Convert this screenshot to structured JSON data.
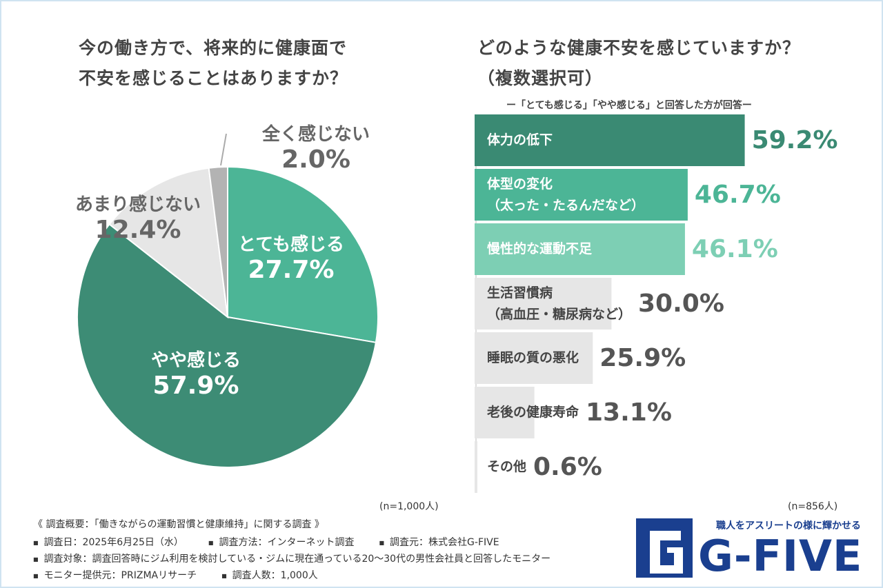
{
  "chart_data": [
    {
      "type": "pie",
      "title": "今の働き方で、将来的に健康面で\n不安を感じることはありますか？",
      "categories": [
        "とても感じる",
        "やや感じる",
        "あまり感じない",
        "全く感じない"
      ],
      "values": [
        27.7,
        57.9,
        12.4,
        2.0
      ],
      "value_labels": [
        "27.7%",
        "57.9%",
        "12.4%",
        "2.0%"
      ],
      "colors": [
        "#4cb596",
        "#3d8c75",
        "#e6e6e6",
        "#b3b3b3"
      ],
      "note": "(n=1,000人)"
    },
    {
      "type": "bar",
      "orientation": "horizontal",
      "title": "どのような健康不安を感じていますか？\n（複数選択可）",
      "subtitle": "ー「とても感じる」「やや感じる」と回答した方が回答ー",
      "categories": [
        "体力の低下",
        "体型の変化\n（太った・たるんだなど）",
        "慢性的な運動不足",
        "生活習慣病\n（高血圧・糖尿病など）",
        "睡眠の質の悪化",
        "老後の健康寿命",
        "その他"
      ],
      "values": [
        59.2,
        46.7,
        46.1,
        30.0,
        25.9,
        13.1,
        0.6
      ],
      "value_labels": [
        "59.2%",
        "46.7%",
        "46.1%",
        "30.0%",
        "25.9%",
        "13.1%",
        "0.6%"
      ],
      "colors": [
        "#3a8a73",
        "#4cb596",
        "#7dcfb4",
        "#e6e6e6",
        "#e6e6e6",
        "#e6e6e6",
        "#e6e6e6"
      ],
      "xlim": [
        0,
        70
      ],
      "note": "(n=856人)"
    }
  ],
  "footer": {
    "heading": "《 調査概要：「働きながらの運動習慣と健康維持」に関する調査 》",
    "rows": [
      [
        "調査日：2025年6月25日（水）",
        "調査方法：インターネット調査",
        "調査元：株式会社G-FIVE"
      ],
      [
        "調査対象：調査回答時にジム利用を検討している・ジムに現在通っている20〜30代の男性会社員と回答したモニター"
      ],
      [
        "モニター提供元：PRIZMAリサーチ",
        "調査人数：1,000人"
      ]
    ]
  },
  "logo": {
    "tagline": "職人をアスリートの様に輝かせる",
    "name": "G-FIVE"
  }
}
